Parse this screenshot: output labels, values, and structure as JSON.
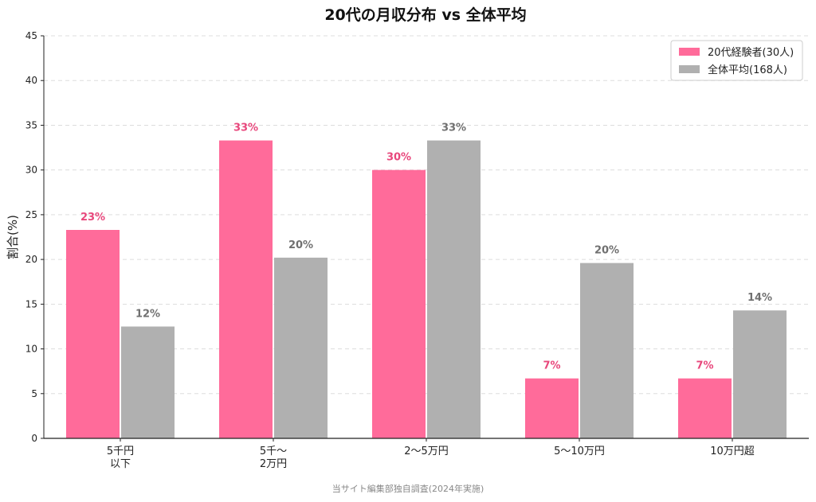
{
  "chart_data": {
    "type": "bar",
    "title": "20代の月収分布 vs 全体平均",
    "ylabel": "割合(%)",
    "xlabel": "",
    "ylim": [
      0,
      45
    ],
    "yticks": [
      0,
      5,
      10,
      15,
      20,
      25,
      30,
      35,
      40,
      45
    ],
    "grid": true,
    "legend_position": "top-right",
    "categories": [
      [
        "5千円",
        "以下"
      ],
      [
        "5千〜",
        "2万円"
      ],
      [
        "2〜5万円"
      ],
      [
        "5〜10万円"
      ],
      [
        "10万円超"
      ]
    ],
    "series": [
      {
        "name": "20代経験者(30人)",
        "color": "#ff6b9a",
        "label_color": "#e8477c",
        "values": [
          23.3,
          33.3,
          30.0,
          6.7,
          6.7
        ],
        "labels": [
          "23%",
          "33%",
          "30%",
          "7%",
          "7%"
        ]
      },
      {
        "name": "全体平均(168人)",
        "color": "#b0b0b0",
        "label_color": "#707070",
        "values": [
          12.5,
          20.2,
          33.3,
          19.6,
          14.3
        ],
        "labels": [
          "12%",
          "20%",
          "33%",
          "20%",
          "14%"
        ]
      }
    ]
  },
  "source_note": "当サイト編集部独自調査(2024年実施)"
}
